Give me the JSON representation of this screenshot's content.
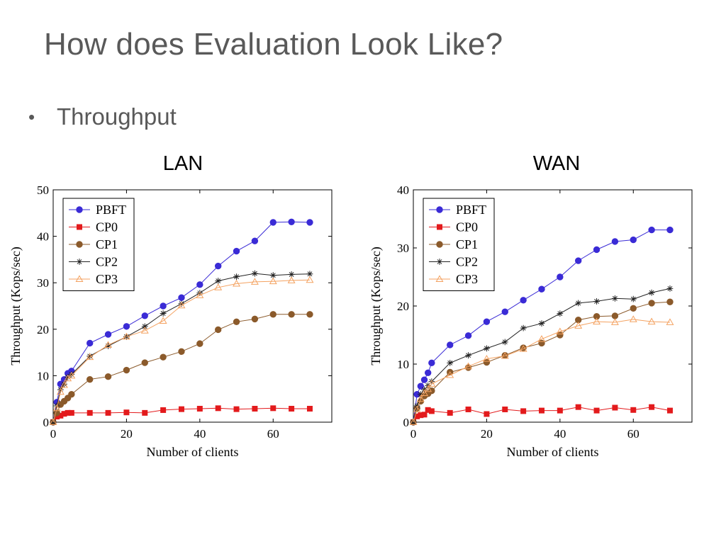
{
  "slide": {
    "title": "How does Evaluation Look Like?",
    "bullet": "Throughput"
  },
  "panels": {
    "lan_label": "LAN",
    "wan_label": "WAN"
  },
  "chart_data": [
    {
      "type": "line",
      "panel": "LAN",
      "xlabel": "Number of clients",
      "ylabel": "Throughput (Kops/sec)",
      "xlim": [
        0,
        76
      ],
      "ylim": [
        0,
        50
      ],
      "xticks": [
        0,
        20,
        40,
        60
      ],
      "yticks": [
        0,
        10,
        20,
        30,
        40,
        50
      ],
      "legend_position": "top-left",
      "grid": false,
      "series": [
        {
          "name": "PBFT",
          "color": "#3a2bd6",
          "marker": "circle",
          "x": [
            0,
            1,
            2,
            3,
            4,
            5,
            10,
            15,
            20,
            25,
            30,
            35,
            40,
            45,
            50,
            55,
            60,
            65,
            70
          ],
          "y": [
            0,
            4.3,
            8.2,
            9.2,
            10.5,
            11,
            17,
            18.9,
            20.6,
            22.9,
            25,
            26.8,
            29.6,
            33.6,
            36.8,
            39,
            43,
            43.1,
            43
          ]
        },
        {
          "name": "CP0",
          "color": "#e31a1c",
          "marker": "square",
          "x": [
            0,
            1,
            2,
            3,
            4,
            5,
            10,
            15,
            20,
            25,
            30,
            35,
            40,
            45,
            50,
            55,
            60,
            65,
            70
          ],
          "y": [
            0,
            1.2,
            1.4,
            1.8,
            2.0,
            2.0,
            2.0,
            2.0,
            2.1,
            2.0,
            2.6,
            2.8,
            2.9,
            3.0,
            2.8,
            2.9,
            3.0,
            2.9,
            2.9
          ]
        },
        {
          "name": "CP1",
          "color": "#8b5a2b",
          "marker": "circle",
          "x": [
            0,
            1,
            2,
            3,
            4,
            5,
            10,
            15,
            20,
            25,
            30,
            35,
            40,
            45,
            50,
            55,
            60,
            65,
            70
          ],
          "y": [
            0,
            2.0,
            3.8,
            4.5,
            5.2,
            6.0,
            9.2,
            9.8,
            11.2,
            12.8,
            14,
            15.2,
            16.9,
            19.9,
            21.6,
            22.2,
            23.2,
            23.2,
            23.2
          ]
        },
        {
          "name": "CP2",
          "color": "#222222",
          "marker": "star",
          "x": [
            0,
            1,
            2,
            3,
            4,
            5,
            10,
            15,
            20,
            25,
            30,
            35,
            40,
            45,
            50,
            55,
            60,
            65,
            70
          ],
          "y": [
            0,
            3.5,
            7.0,
            8.2,
            9.7,
            10.3,
            14.2,
            16.4,
            18.4,
            20.6,
            23.4,
            25.5,
            27.8,
            30.4,
            31.3,
            32,
            31.6,
            31.8,
            31.9
          ]
        },
        {
          "name": "CP3",
          "color": "#f4a261",
          "marker": "triangle",
          "x": [
            0,
            1,
            2,
            3,
            4,
            5,
            10,
            15,
            20,
            25,
            30,
            35,
            40,
            45,
            50,
            55,
            60,
            65,
            70
          ],
          "y": [
            0,
            3.0,
            6.5,
            8.0,
            9.4,
            10.0,
            14.0,
            16.6,
            18.4,
            19.7,
            21.8,
            25.1,
            27.3,
            29.0,
            29.8,
            30.2,
            30.3,
            30.5,
            30.6
          ]
        }
      ]
    },
    {
      "type": "line",
      "panel": "WAN",
      "xlabel": "Number of clients",
      "ylabel": "Throughput (Kops/sec)",
      "xlim": [
        0,
        76
      ],
      "ylim": [
        0,
        40
      ],
      "xticks": [
        0,
        20,
        40,
        60
      ],
      "yticks": [
        0,
        10,
        20,
        30,
        40
      ],
      "legend_position": "top-left",
      "grid": false,
      "series": [
        {
          "name": "PBFT",
          "color": "#3a2bd6",
          "marker": "circle",
          "x": [
            0,
            1,
            2,
            3,
            4,
            5,
            10,
            15,
            20,
            25,
            30,
            35,
            40,
            45,
            50,
            55,
            60,
            65,
            70
          ],
          "y": [
            0,
            4.8,
            6.2,
            7.3,
            8.5,
            10.2,
            13.3,
            14.9,
            17.3,
            19,
            21,
            22.9,
            25,
            27.8,
            29.7,
            31.1,
            31.4,
            33.1,
            33.1
          ]
        },
        {
          "name": "CP0",
          "color": "#e31a1c",
          "marker": "square",
          "x": [
            0,
            1,
            2,
            3,
            4,
            5,
            10,
            15,
            20,
            25,
            30,
            35,
            40,
            45,
            50,
            55,
            60,
            65,
            70
          ],
          "y": [
            0,
            1.0,
            1.2,
            1.3,
            2.1,
            1.9,
            1.6,
            2.2,
            1.4,
            2.2,
            1.9,
            2.0,
            2.0,
            2.6,
            2.0,
            2.5,
            2.1,
            2.6,
            2.0
          ]
        },
        {
          "name": "CP1",
          "color": "#8b5a2b",
          "marker": "circle",
          "x": [
            0,
            1,
            2,
            3,
            4,
            5,
            10,
            15,
            20,
            25,
            30,
            35,
            40,
            45,
            50,
            55,
            60,
            65,
            70
          ],
          "y": [
            0,
            2.4,
            3.6,
            4.5,
            4.9,
            5.4,
            8.6,
            9.4,
            10.3,
            11.5,
            12.8,
            13.6,
            15,
            17.6,
            18.2,
            18.3,
            19.6,
            20.5,
            20.7
          ]
        },
        {
          "name": "CP2",
          "color": "#222222",
          "marker": "star",
          "x": [
            0,
            1,
            2,
            3,
            4,
            5,
            10,
            15,
            20,
            25,
            30,
            35,
            40,
            45,
            50,
            55,
            60,
            65,
            70
          ],
          "y": [
            0,
            2.8,
            4.8,
            5.6,
            6.3,
            7.0,
            10.2,
            11.5,
            12.7,
            13.8,
            16.2,
            17.0,
            18.7,
            20.5,
            20.8,
            21.3,
            21.2,
            22.3,
            23.0
          ]
        },
        {
          "name": "CP3",
          "color": "#f4a261",
          "marker": "triangle",
          "x": [
            0,
            1,
            2,
            3,
            4,
            5,
            10,
            15,
            20,
            25,
            30,
            35,
            40,
            45,
            50,
            55,
            60,
            65,
            70
          ],
          "y": [
            0,
            2.2,
            4.0,
            5.0,
            5.7,
            6.6,
            8.1,
            9.6,
            10.9,
            11.4,
            12.6,
            14.3,
            15.6,
            16.6,
            17.3,
            17.2,
            17.7,
            17.3,
            17.2
          ]
        }
      ]
    }
  ]
}
